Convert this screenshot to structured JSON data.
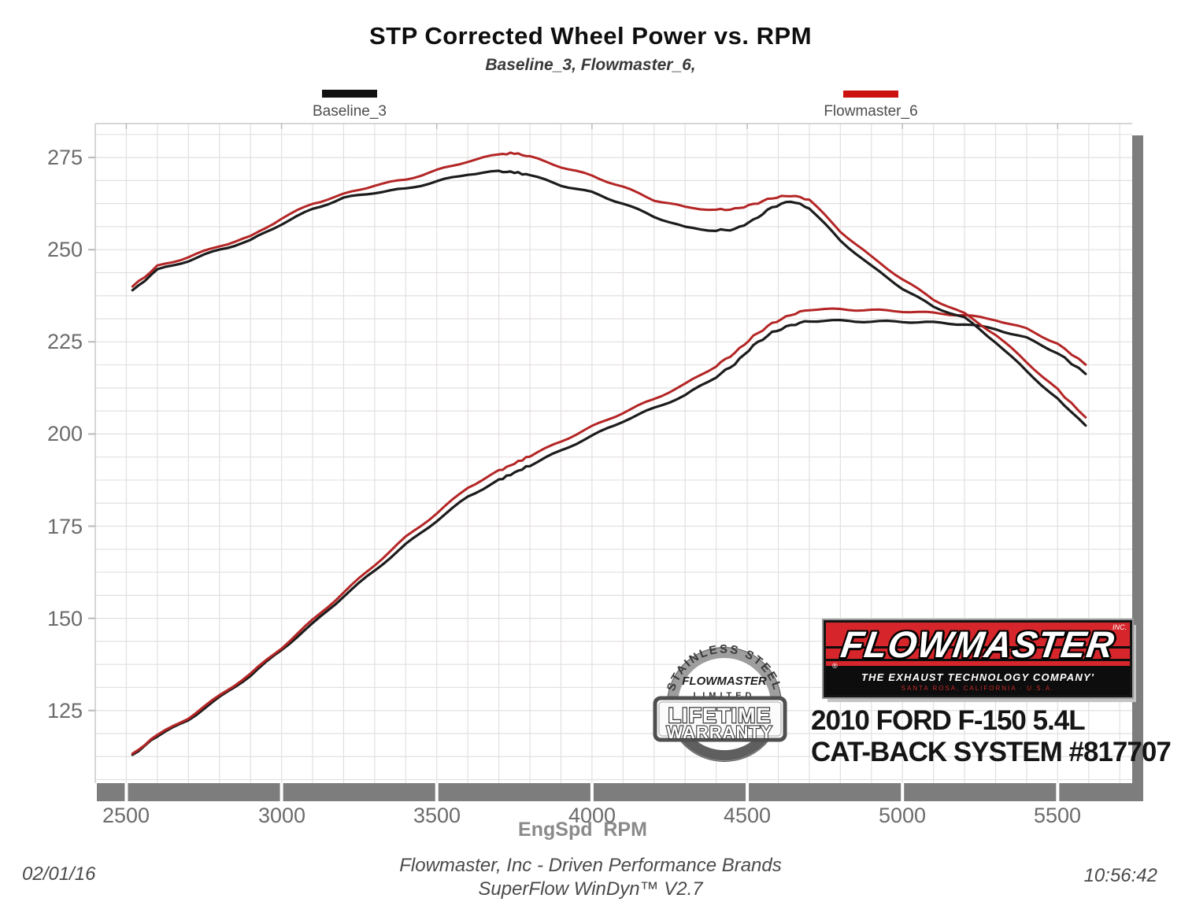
{
  "title": "STP Corrected Wheel Power vs. RPM",
  "subtitle": "Baseline_3, Flowmaster_6,",
  "legend": {
    "baseline_label": "Baseline_3",
    "baseline_color": "#111111",
    "flowmaster_label": "Flowmaster_6",
    "flowmaster_color": "#cc1111"
  },
  "x_axis_title": "EngSpd  RPM",
  "footer": {
    "line1": "Flowmaster, Inc - Driven Performance Brands",
    "line2": "SuperFlow WinDyn™ V2.7",
    "date": "02/01/16",
    "time": "10:56:42"
  },
  "branding": {
    "logo_word": "FLOWMASTER",
    "logo_inc": "INC.",
    "logo_reg": "®",
    "logo_company": "THE EXHAUST TECHNOLOGY COMPANY'",
    "logo_tagline": "SANTA ROSA, CALIFORNIA · U.S.A.",
    "vehicle_line1": "2010 FORD F-150 5.4L",
    "vehicle_line2": "CAT-BACK SYSTEM #817707",
    "badge_arc": "STAINLESS STEEL",
    "badge_brand": "FLOWMASTER",
    "badge_limited": "LIMITED",
    "badge_word1": "LIFETIME",
    "badge_word2": "WARRANTY"
  },
  "chart_data": {
    "type": "line",
    "title": "STP Corrected Wheel Power vs. RPM",
    "subtitle": "Baseline_3, Flowmaster_6,",
    "xlabel": "EngSpd RPM",
    "ylabel": "",
    "grid": "on",
    "legend_position": "top",
    "x_axis": {
      "range": [
        2400,
        5740
      ],
      "ticks": [
        2500,
        3000,
        3500,
        4000,
        4500,
        5000,
        5500
      ],
      "minor_grid_step": 100
    },
    "y_axis": {
      "range": [
        105.3,
        284.2
      ],
      "ticks": [
        275,
        250,
        225,
        200,
        175,
        150,
        125
      ],
      "minor_grid_step": 6.25
    },
    "rpm": [
      2520,
      2600,
      2700,
      2800,
      2900,
      3000,
      3100,
      3200,
      3300,
      3400,
      3500,
      3600,
      3700,
      3750,
      3800,
      3900,
      4000,
      4100,
      4200,
      4300,
      4400,
      4460,
      4520,
      4580,
      4640,
      4700,
      4800,
      4900,
      5000,
      5100,
      5200,
      5300,
      5400,
      5500,
      5590
    ],
    "series": [
      {
        "name": "Baseline_3 power (lower band, hp)",
        "color": "#1c1c1c",
        "width": 3.2,
        "values": [
          113,
          118,
          122.5,
          128.5,
          134.5,
          141.5,
          148.5,
          156,
          163,
          170,
          176.5,
          183,
          187.5,
          189.5,
          191.5,
          195.5,
          199.5,
          203.5,
          207,
          210.5,
          215.5,
          219,
          224,
          227.5,
          229.5,
          230.7,
          230.7,
          230.5,
          230.5,
          230.2,
          229.8,
          228.5,
          226,
          222,
          216.3
        ]
      },
      {
        "name": "Flowmaster_6 power (lower band, hp)",
        "color": "#b42525",
        "width": 3,
        "values": [
          113.3,
          118.3,
          123,
          129,
          135,
          142,
          149.5,
          157,
          164.5,
          172,
          178.5,
          185.5,
          190,
          192,
          194,
          198,
          202,
          205.8,
          209.5,
          213.5,
          218.5,
          222,
          226.5,
          230,
          232.3,
          233.8,
          233.8,
          233.6,
          233.3,
          232.8,
          232.2,
          231,
          228.5,
          224.5,
          218.8
        ]
      },
      {
        "name": "Baseline_3 torque (upper band, lb-ft)",
        "color": "#1c1c1c",
        "width": 3.2,
        "values": [
          239,
          244.5,
          247,
          250,
          252.5,
          257,
          261,
          264,
          265.5,
          266.5,
          268.5,
          270.5,
          271.2,
          271,
          270.2,
          267.5,
          265.5,
          262.5,
          259,
          256,
          255.2,
          255.5,
          258,
          261.5,
          263.2,
          261.3,
          252.5,
          245.5,
          239.5,
          234.5,
          231.5,
          225,
          217,
          209.5,
          202.3
        ]
      },
      {
        "name": "Flowmaster_6 torque (upper band, lb-ft)",
        "color": "#b42525",
        "width": 3,
        "values": [
          240,
          245.5,
          248,
          251,
          253.5,
          258.5,
          262.5,
          265,
          267.5,
          269,
          271.5,
          274,
          275.8,
          276.2,
          275.2,
          272.5,
          270,
          267,
          263.5,
          261.5,
          260.8,
          261,
          262.3,
          264,
          264.7,
          263.6,
          255,
          248,
          242,
          236.5,
          232.6,
          227,
          219.5,
          212,
          204.5
        ]
      }
    ]
  }
}
